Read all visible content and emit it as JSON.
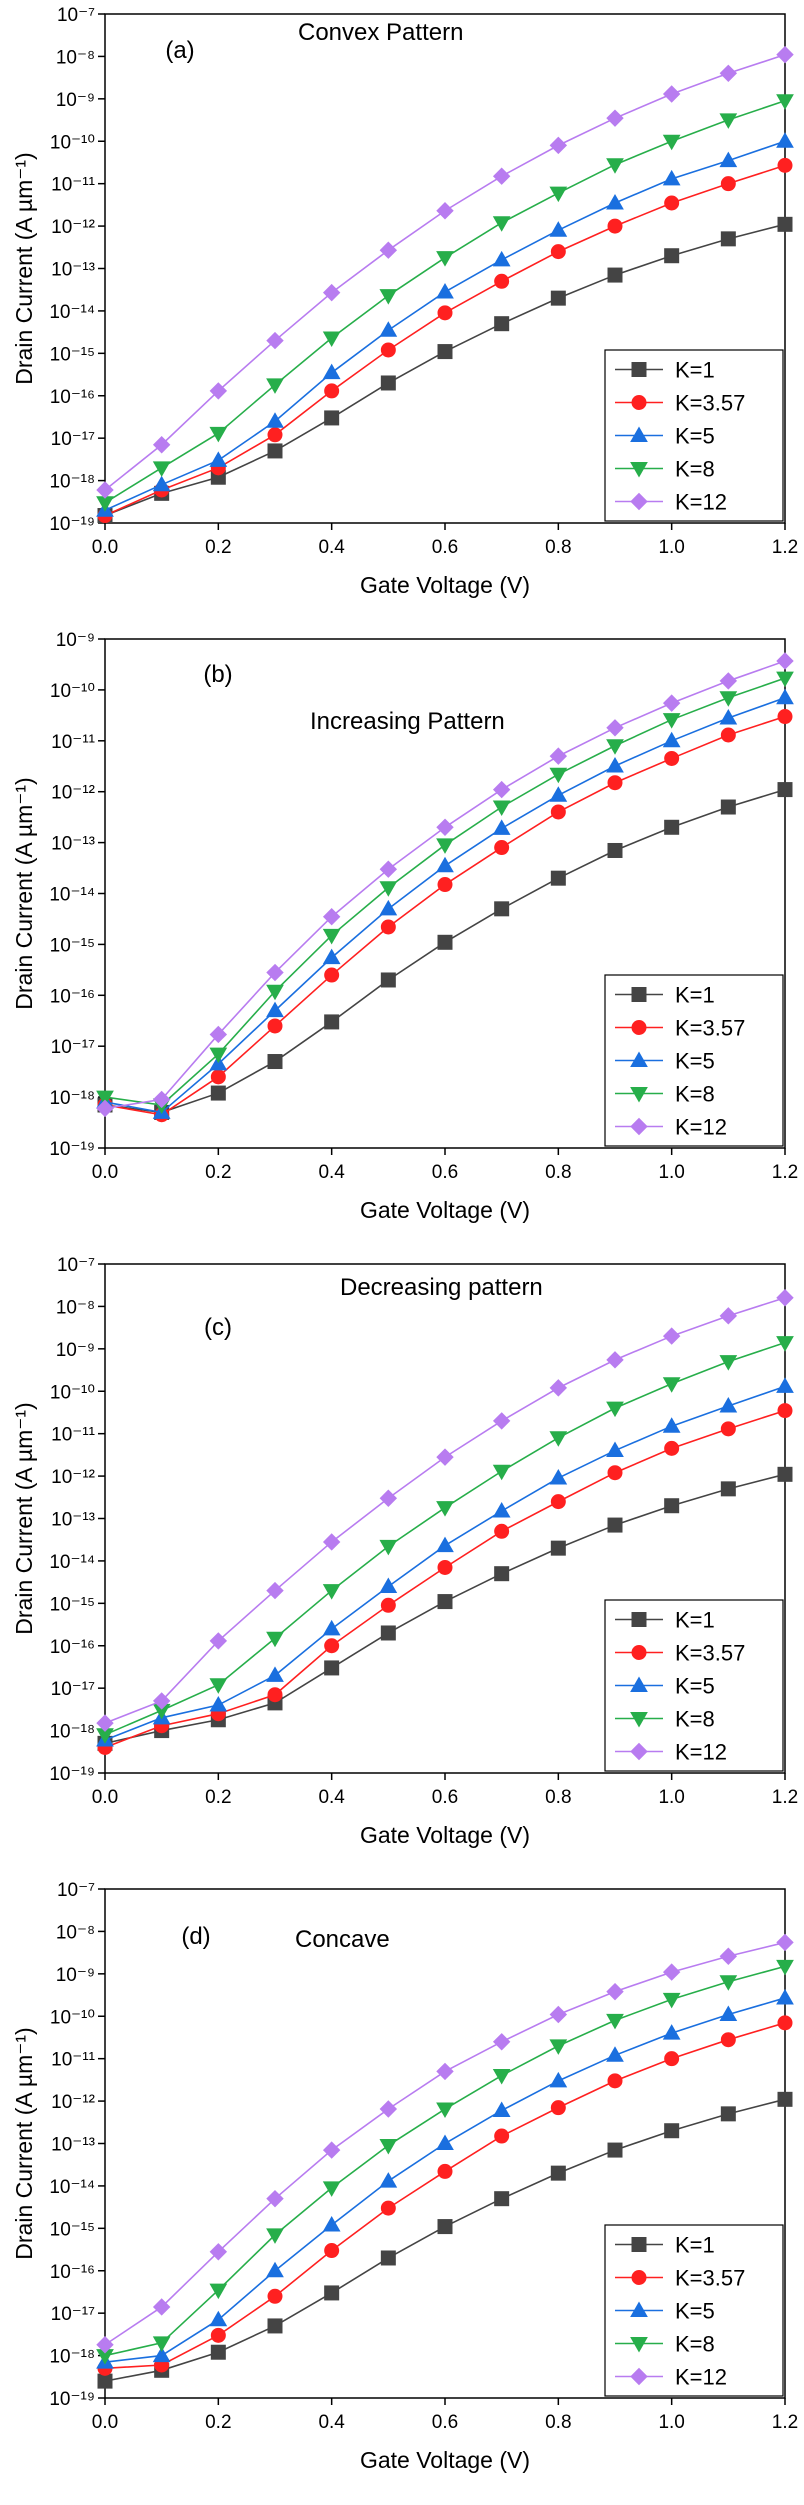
{
  "chart_data": [
    {
      "type": "line",
      "panel_label": "(a)",
      "annotation": "Convex Pattern",
      "x_label": "Gate Voltage (V)",
      "y_label": "Drain Current (A µm⁻¹)",
      "y_scale": "log",
      "legend": "lower right",
      "x": [
        0,
        0.1,
        0.2,
        0.3,
        0.4,
        0.5,
        0.6,
        0.7,
        0.8,
        0.9,
        1.0,
        1.1,
        1.2
      ],
      "xlim": [
        0,
        1.2
      ],
      "xticks": [
        {
          "value": 0,
          "label": "0.0"
        },
        0.2,
        0.4,
        0.6,
        0.8,
        {
          "value": 1,
          "label": "1.0"
        },
        1.2
      ],
      "ylim": [
        1e-19,
        1e-07
      ],
      "yticks": [
        {
          "value": 1e-19,
          "label": "10⁻¹⁹"
        },
        {
          "value": 1e-18,
          "label": "10⁻¹⁸"
        },
        {
          "value": 1e-17,
          "label": "10⁻¹⁷"
        },
        {
          "value": 1e-16,
          "label": "10⁻¹⁶"
        },
        {
          "value": 1e-15,
          "label": "10⁻¹⁵"
        },
        {
          "value": 1e-14,
          "label": "10⁻¹⁴"
        },
        {
          "value": 1e-13,
          "label": "10⁻¹³"
        },
        {
          "value": 1e-12,
          "label": "10⁻¹²"
        },
        {
          "value": 1e-11,
          "label": "10⁻¹¹"
        },
        {
          "value": 1e-10,
          "label": "10⁻¹⁰"
        },
        {
          "value": 1e-09,
          "label": "10⁻⁹"
        },
        {
          "value": 1e-08,
          "label": "10⁻⁸"
        },
        {
          "value": 1e-07,
          "label": "10⁻⁷"
        }
      ],
      "series": [
        {
          "name": "K=1",
          "color": "#444444",
          "marker": "square",
          "values": [
            1.5e-19,
            5e-19,
            1.2e-18,
            5e-18,
            3e-17,
            2e-16,
            1.1e-15,
            5e-15,
            2e-14,
            7e-14,
            2e-13,
            5e-13,
            1.1e-12
          ]
        },
        {
          "name": "K=3.57",
          "color": "#ff2020",
          "marker": "circle",
          "values": [
            1.5e-19,
            6e-19,
            2e-18,
            1.2e-17,
            1.3e-16,
            1.2e-15,
            9e-15,
            5e-14,
            2.5e-13,
            1e-12,
            3.5e-12,
            1e-11,
            2.7e-11
          ]
        },
        {
          "name": "K=5",
          "color": "#1a6fdf",
          "marker": "triangle-up",
          "values": [
            2e-19,
            8e-19,
            3e-18,
            2.5e-17,
            3.5e-16,
            3.5e-15,
            2.8e-14,
            1.6e-13,
            8e-13,
            3.5e-12,
            1.3e-11,
            3.5e-11,
            1e-10
          ]
        },
        {
          "name": "K=8",
          "color": "#27ae4a",
          "marker": "triangle-down",
          "values": [
            3e-19,
            2e-18,
            1.3e-17,
            1.8e-16,
            2.3e-15,
            2.3e-14,
            1.8e-13,
            1.2e-12,
            6e-12,
            2.8e-11,
            1e-10,
            3.2e-10,
            9e-10
          ]
        },
        {
          "name": "K=12",
          "color": "#b87cf0",
          "marker": "diamond",
          "values": [
            6e-19,
            7e-18,
            1.3e-16,
            2e-15,
            2.7e-14,
            2.7e-13,
            2.3e-12,
            1.5e-11,
            8e-11,
            3.5e-10,
            1.3e-09,
            4e-09,
            1.1e-08
          ]
        }
      ]
    },
    {
      "type": "line",
      "panel_label": "(b)",
      "annotation": "Increasing Pattern",
      "x_label": "Gate Voltage (V)",
      "y_label": "Drain Current (A µm⁻¹)",
      "y_scale": "log",
      "legend": "lower right",
      "x": [
        0,
        0.1,
        0.2,
        0.3,
        0.4,
        0.5,
        0.6,
        0.7,
        0.8,
        0.9,
        1.0,
        1.1,
        1.2
      ],
      "xlim": [
        0,
        1.2
      ],
      "xticks": [
        {
          "value": 0,
          "label": "0.0"
        },
        0.2,
        0.4,
        0.6,
        0.8,
        {
          "value": 1,
          "label": "1.0"
        },
        1.2
      ],
      "ylim": [
        1e-19,
        1e-09
      ],
      "yticks": [
        {
          "value": 1e-19,
          "label": "10⁻¹⁹"
        },
        {
          "value": 1e-18,
          "label": "10⁻¹⁸"
        },
        {
          "value": 1e-17,
          "label": "10⁻¹⁷"
        },
        {
          "value": 1e-16,
          "label": "10⁻¹⁶"
        },
        {
          "value": 1e-15,
          "label": "10⁻¹⁵"
        },
        {
          "value": 1e-14,
          "label": "10⁻¹⁴"
        },
        {
          "value": 1e-13,
          "label": "10⁻¹³"
        },
        {
          "value": 1e-12,
          "label": "10⁻¹²"
        },
        {
          "value": 1e-11,
          "label": "10⁻¹¹"
        },
        {
          "value": 1e-10,
          "label": "10⁻¹⁰"
        },
        {
          "value": 1e-09,
          "label": "10⁻⁹"
        }
      ],
      "series": [
        {
          "name": "K=1",
          "color": "#444444",
          "marker": "square",
          "values": [
            7e-19,
            5e-19,
            1.2e-18,
            5e-18,
            3e-17,
            2e-16,
            1.1e-15,
            5e-15,
            2e-14,
            7e-14,
            2e-13,
            5e-13,
            1.1e-12
          ]
        },
        {
          "name": "K=3.57",
          "color": "#ff2020",
          "marker": "circle",
          "values": [
            7e-19,
            4.5e-19,
            2.5e-18,
            2.5e-17,
            2.5e-16,
            2.2e-15,
            1.5e-14,
            8e-14,
            4e-13,
            1.5e-12,
            4.5e-12,
            1.3e-11,
            3e-11
          ]
        },
        {
          "name": "K=5",
          "color": "#1a6fdf",
          "marker": "triangle-up",
          "values": [
            8e-19,
            5e-19,
            4.5e-18,
            5e-17,
            5.5e-16,
            5e-15,
            3.5e-14,
            1.9e-13,
            8.5e-13,
            3.2e-12,
            1e-11,
            2.8e-11,
            7e-11
          ]
        },
        {
          "name": "K=8",
          "color": "#27ae4a",
          "marker": "triangle-down",
          "values": [
            1e-18,
            7e-19,
            7e-18,
            1.2e-16,
            1.5e-15,
            1.3e-14,
            9e-14,
            5e-13,
            2.2e-12,
            8e-12,
            2.6e-11,
            7e-11,
            1.7e-10
          ]
        },
        {
          "name": "K=12",
          "color": "#b87cf0",
          "marker": "diamond",
          "values": [
            6e-19,
            9e-19,
            1.7e-17,
            2.8e-16,
            3.5e-15,
            3e-14,
            2e-13,
            1.1e-12,
            5e-12,
            1.8e-11,
            5.5e-11,
            1.5e-10,
            3.7e-10
          ]
        }
      ]
    },
    {
      "type": "line",
      "panel_label": "(c)",
      "annotation": "Decreasing pattern",
      "x_label": "Gate Voltage (V)",
      "y_label": "Drain Current (A µm⁻¹)",
      "y_scale": "log",
      "legend": "lower right",
      "x": [
        0,
        0.1,
        0.2,
        0.3,
        0.4,
        0.5,
        0.6,
        0.7,
        0.8,
        0.9,
        1.0,
        1.1,
        1.2
      ],
      "xlim": [
        0,
        1.2
      ],
      "xticks": [
        {
          "value": 0,
          "label": "0.0"
        },
        0.2,
        0.4,
        0.6,
        0.8,
        {
          "value": 1,
          "label": "1.0"
        },
        1.2
      ],
      "ylim": [
        1e-19,
        1e-07
      ],
      "yticks": [
        {
          "value": 1e-19,
          "label": "10⁻¹⁹"
        },
        {
          "value": 1e-18,
          "label": "10⁻¹⁸"
        },
        {
          "value": 1e-17,
          "label": "10⁻¹⁷"
        },
        {
          "value": 1e-16,
          "label": "10⁻¹⁶"
        },
        {
          "value": 1e-15,
          "label": "10⁻¹⁵"
        },
        {
          "value": 1e-14,
          "label": "10⁻¹⁴"
        },
        {
          "value": 1e-13,
          "label": "10⁻¹³"
        },
        {
          "value": 1e-12,
          "label": "10⁻¹²"
        },
        {
          "value": 1e-11,
          "label": "10⁻¹¹"
        },
        {
          "value": 1e-10,
          "label": "10⁻¹⁰"
        },
        {
          "value": 1e-09,
          "label": "10⁻⁹"
        },
        {
          "value": 1e-08,
          "label": "10⁻⁸"
        },
        {
          "value": 1e-07,
          "label": "10⁻⁷"
        }
      ],
      "series": [
        {
          "name": "K=1",
          "color": "#444444",
          "marker": "square",
          "values": [
            5e-19,
            1e-18,
            1.8e-18,
            4.5e-18,
            3e-17,
            2e-16,
            1.1e-15,
            5e-15,
            2e-14,
            7e-14,
            2e-13,
            5e-13,
            1.1e-12
          ]
        },
        {
          "name": "K=3.57",
          "color": "#ff2020",
          "marker": "circle",
          "values": [
            4e-19,
            1.3e-18,
            2.5e-18,
            7e-18,
            1e-16,
            9e-16,
            7e-15,
            5e-14,
            2.5e-13,
            1.2e-12,
            4.5e-12,
            1.3e-11,
            3.5e-11
          ]
        },
        {
          "name": "K=5",
          "color": "#1a6fdf",
          "marker": "triangle-up",
          "values": [
            6e-19,
            2e-18,
            4e-18,
            2e-17,
            2.5e-16,
            2.5e-15,
            2.3e-14,
            1.5e-13,
            9e-13,
            4e-12,
            1.5e-11,
            4.5e-11,
            1.3e-10
          ]
        },
        {
          "name": "K=8",
          "color": "#27ae4a",
          "marker": "triangle-down",
          "values": [
            8e-19,
            3e-18,
            1.2e-17,
            1.5e-16,
            2e-15,
            2.2e-14,
            1.8e-13,
            1.3e-12,
            8e-12,
            4e-11,
            1.5e-10,
            5e-10,
            1.4e-09
          ]
        },
        {
          "name": "K=12",
          "color": "#b87cf0",
          "marker": "diamond",
          "values": [
            1.5e-18,
            5e-18,
            1.3e-16,
            2e-15,
            2.8e-14,
            3e-13,
            2.8e-12,
            2e-11,
            1.2e-10,
            5.5e-10,
            2e-09,
            6e-09,
            1.6e-08
          ]
        }
      ]
    },
    {
      "type": "line",
      "panel_label": "(d)",
      "annotation": "Concave",
      "x_label": "Gate Voltage (V)",
      "y_label": "Drain Current (A µm⁻¹)",
      "y_scale": "log",
      "legend": "lower right",
      "x": [
        0,
        0.1,
        0.2,
        0.3,
        0.4,
        0.5,
        0.6,
        0.7,
        0.8,
        0.9,
        1.0,
        1.1,
        1.2
      ],
      "xlim": [
        0,
        1.2
      ],
      "xticks": [
        {
          "value": 0,
          "label": "0.0"
        },
        0.2,
        0.4,
        0.6,
        0.8,
        {
          "value": 1,
          "label": "1.0"
        },
        1.2
      ],
      "ylim": [
        1e-19,
        1e-07
      ],
      "yticks": [
        {
          "value": 1e-19,
          "label": "10⁻¹⁹"
        },
        {
          "value": 1e-18,
          "label": "10⁻¹⁸"
        },
        {
          "value": 1e-17,
          "label": "10⁻¹⁷"
        },
        {
          "value": 1e-16,
          "label": "10⁻¹⁶"
        },
        {
          "value": 1e-15,
          "label": "10⁻¹⁵"
        },
        {
          "value": 1e-14,
          "label": "10⁻¹⁴"
        },
        {
          "value": 1e-13,
          "label": "10⁻¹³"
        },
        {
          "value": 1e-12,
          "label": "10⁻¹²"
        },
        {
          "value": 1e-11,
          "label": "10⁻¹¹"
        },
        {
          "value": 1e-10,
          "label": "10⁻¹⁰"
        },
        {
          "value": 1e-09,
          "label": "10⁻⁹"
        },
        {
          "value": 1e-08,
          "label": "10⁻⁸"
        },
        {
          "value": 1e-07,
          "label": "10⁻⁷"
        }
      ],
      "series": [
        {
          "name": "K=1",
          "color": "#444444",
          "marker": "square",
          "values": [
            2.5e-19,
            4.5e-19,
            1.2e-18,
            5e-18,
            3e-17,
            2e-16,
            1.1e-15,
            5e-15,
            2e-14,
            7e-14,
            2e-13,
            5e-13,
            1.1e-12
          ]
        },
        {
          "name": "K=3.57",
          "color": "#ff2020",
          "marker": "circle",
          "values": [
            5e-19,
            6e-19,
            3e-18,
            2.5e-17,
            3e-16,
            3e-15,
            2.2e-14,
            1.5e-13,
            7e-13,
            3e-12,
            1e-11,
            2.8e-11,
            7e-11
          ]
        },
        {
          "name": "K=5",
          "color": "#1a6fdf",
          "marker": "triangle-up",
          "values": [
            7e-19,
            1e-18,
            7e-18,
            1e-16,
            1.2e-15,
            1.3e-14,
            1e-13,
            6e-13,
            3e-12,
            1.2e-11,
            4e-11,
            1.1e-10,
            2.7e-10
          ]
        },
        {
          "name": "K=8",
          "color": "#27ae4a",
          "marker": "triangle-down",
          "values": [
            1e-18,
            2e-18,
            3.5e-17,
            7e-16,
            9e-15,
            9e-14,
            6.5e-13,
            4e-12,
            2e-11,
            8e-11,
            2.5e-10,
            6.5e-10,
            1.5e-09
          ]
        },
        {
          "name": "K=12",
          "color": "#b87cf0",
          "marker": "diamond",
          "values": [
            1.8e-18,
            1.4e-17,
            2.8e-16,
            5e-15,
            7e-14,
            6.5e-13,
            5e-12,
            2.5e-11,
            1.1e-10,
            3.8e-10,
            1.1e-09,
            2.6e-09,
            5.5e-09
          ]
        }
      ]
    }
  ]
}
